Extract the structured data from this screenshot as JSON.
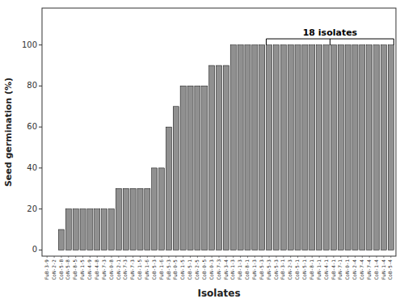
{
  "chart_data": {
    "type": "bar",
    "xlabel": "Isolates",
    "ylabel": "Seed germination (%)",
    "color": "#909090",
    "ylim": [
      -3,
      118
    ],
    "yticks": [
      0,
      20,
      40,
      60,
      80,
      100
    ],
    "grid": false,
    "categories": [
      "FuB-3-9",
      "CoN-2-2",
      "CoB-5-8",
      "CoN-5-8",
      "FuB-8-5",
      "FuN-1-5",
      "CoN-4-9",
      "FuB-4-8",
      "FuN-7-3",
      "CoN-0-8",
      "CoN-2-1",
      "CoN-7-3",
      "FuN-7-3",
      "CoB-1-5",
      "FuN-1-6",
      "CoB-5-3",
      "FuB-1-6",
      "FuB-5-3",
      "FuB-0-5",
      "CoN-1-5",
      "CoB-5-1",
      "CoN-2-5",
      "CoB-0-5",
      "CoN-0-3",
      "CoN-7-3",
      "FuN-3-4",
      "CoN-1-3",
      "FuB-1-3",
      "CoB-8-1",
      "FuN-1-3",
      "FuB-5-3",
      "FuN-5-3",
      "CoN-5-3",
      "FuB-3-1",
      "CoN-2-3",
      "CoB-5-1",
      "CoN-5-1",
      "FuB-8-1",
      "FuN-1-1",
      "CoN-4-1",
      "FuB-4-1",
      "FuN-7-1",
      "CoN-0-1",
      "CoN-2-4",
      "CoN-7-4",
      "FuN-7-4",
      "CoB-1-4",
      "FuN-1-4",
      "CoB-5-4"
    ],
    "values": [
      0,
      0,
      10,
      20,
      20,
      20,
      20,
      20,
      20,
      20,
      30,
      30,
      30,
      30,
      30,
      40,
      40,
      60,
      70,
      80,
      80,
      80,
      80,
      90,
      90,
      90,
      100,
      100,
      100,
      100,
      100,
      100,
      100,
      100,
      100,
      100,
      100,
      100,
      100,
      100,
      100,
      100,
      100,
      100,
      100,
      100,
      100,
      100,
      100
    ],
    "annotations": [
      {
        "text": "18 isolates",
        "x": [
          "FuN-5-3",
          "CoB-5-4"
        ],
        "y": [
          100,
          103
        ]
      }
    ]
  }
}
